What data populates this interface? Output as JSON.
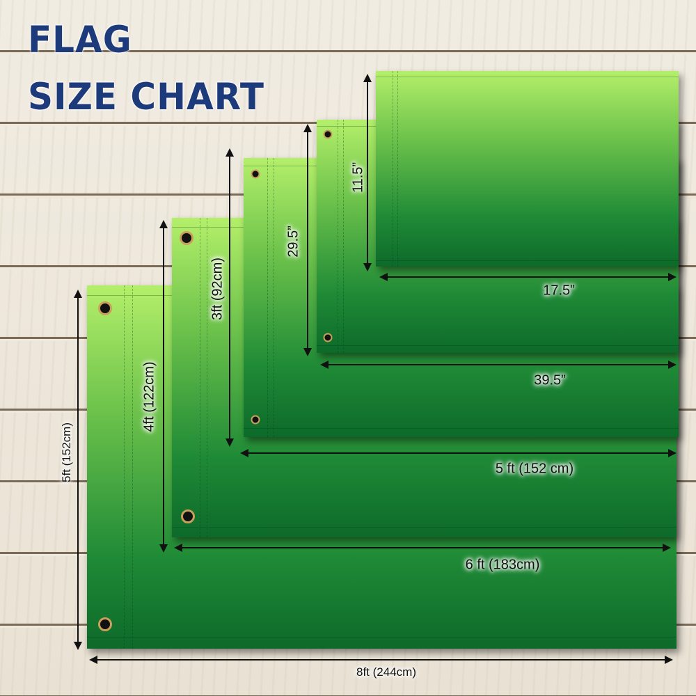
{
  "title": {
    "line1": "FLAG",
    "line2": "SIZE CHART"
  },
  "colors": {
    "title": "#1d3a7a",
    "flag_top": "#b4ef6a",
    "flag_bottom": "#0d6a2a",
    "grommet_ring": "#c9a05a"
  },
  "flags": [
    {
      "width_label": "8ft (244cm)",
      "height_label": "5ft (152cm)"
    },
    {
      "width_label": "6 ft (183cm)",
      "height_label": "4ft (122cm)"
    },
    {
      "width_label": "5 ft (152 cm)",
      "height_label": "3ft (92cm)"
    },
    {
      "width_label": "39.5”",
      "height_label": "29.5”"
    },
    {
      "width_label": "17.5”",
      "height_label": "11.5”"
    }
  ]
}
